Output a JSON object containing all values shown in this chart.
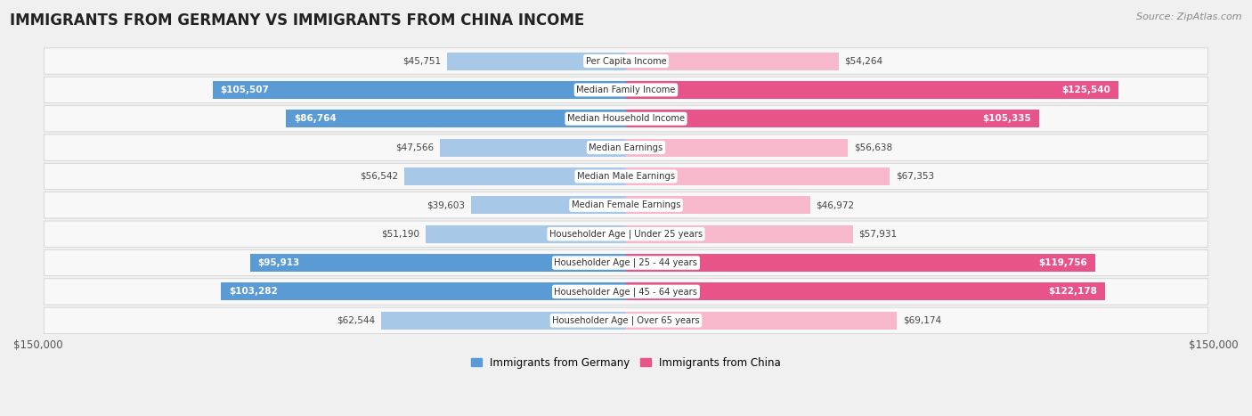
{
  "title": "IMMIGRANTS FROM GERMANY VS IMMIGRANTS FROM CHINA INCOME",
  "source": "Source: ZipAtlas.com",
  "categories": [
    "Per Capita Income",
    "Median Family Income",
    "Median Household Income",
    "Median Earnings",
    "Median Male Earnings",
    "Median Female Earnings",
    "Householder Age | Under 25 years",
    "Householder Age | 25 - 44 years",
    "Householder Age | 45 - 64 years",
    "Householder Age | Over 65 years"
  ],
  "germany_values": [
    45751,
    105507,
    86764,
    47566,
    56542,
    39603,
    51190,
    95913,
    103282,
    62544
  ],
  "china_values": [
    54264,
    125540,
    105335,
    56638,
    67353,
    46972,
    57931,
    119756,
    122178,
    69174
  ],
  "germany_labels": [
    "$45,751",
    "$105,507",
    "$86,764",
    "$47,566",
    "$56,542",
    "$39,603",
    "$51,190",
    "$95,913",
    "$103,282",
    "$62,544"
  ],
  "china_labels": [
    "$54,264",
    "$125,540",
    "$105,335",
    "$56,638",
    "$67,353",
    "$46,972",
    "$57,931",
    "$119,756",
    "$122,178",
    "$69,174"
  ],
  "germany_color_light": "#a8c8e8",
  "germany_color_dark": "#5b9bd5",
  "china_color_light": "#f8b8cc",
  "china_color_dark": "#e8538a",
  "germany_inside_threshold": 75000,
  "china_inside_threshold": 75000,
  "max_value": 150000,
  "legend_germany": "Immigrants from Germany",
  "legend_china": "Immigrants from China",
  "background_color": "#f0f0f0",
  "row_color": "#f8f8f8"
}
